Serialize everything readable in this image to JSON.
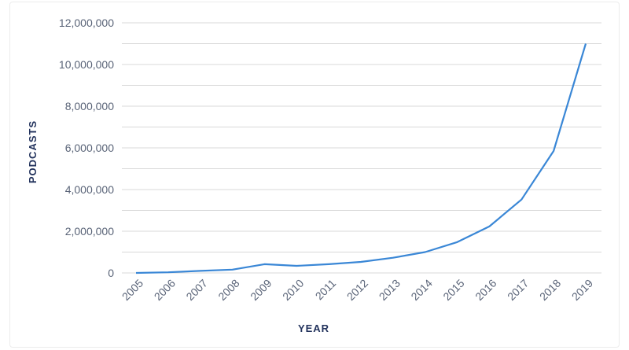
{
  "chart_data": {
    "type": "line",
    "title": "",
    "xlabel": "YEAR",
    "ylabel": "PODCASTS",
    "x": [
      "2005",
      "2006",
      "2007",
      "2008",
      "2009",
      "2010",
      "2011",
      "2012",
      "2013",
      "2014",
      "2015",
      "2016",
      "2017",
      "2018",
      "2019"
    ],
    "series": [
      {
        "values": [
          0,
          30000,
          100000,
          160000,
          420000,
          340000,
          420000,
          530000,
          730000,
          1000000,
          1480000,
          2230000,
          3520000,
          5850000,
          11000000
        ]
      }
    ],
    "y_ticks": [
      "0",
      "2,000,000",
      "4,000,000",
      "6,000,000",
      "8,000,000",
      "10,000,000",
      "12,000,000"
    ],
    "ylim": [
      0,
      12000000
    ],
    "grid": true,
    "line_color": "#3a87d6",
    "grid_color": "#d9d9d9"
  }
}
